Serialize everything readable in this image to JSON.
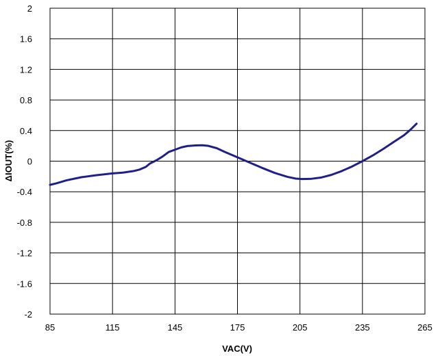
{
  "chart_data": {
    "type": "line",
    "title": "",
    "xlabel": "VAC(V)",
    "ylabel": "ΔIOUT(%)",
    "xlim": [
      85,
      265
    ],
    "ylim": [
      -2,
      2
    ],
    "x_ticks": [
      85,
      115,
      145,
      175,
      205,
      235,
      265
    ],
    "x_tick_labels": [
      "85",
      "115",
      "145",
      "175",
      "205",
      "235",
      "265"
    ],
    "y_ticks": [
      2,
      1.6,
      1.2,
      0.8,
      0.4,
      0,
      -0.4,
      -0.8,
      -1.2,
      -1.6,
      -2
    ],
    "y_tick_labels": [
      "2",
      "1.6",
      "1.2",
      "0.8",
      "0.4",
      "0",
      "-0.4",
      "-0.8",
      "-1.2",
      "-1.6",
      "-2"
    ],
    "grid": true,
    "legend": "none",
    "series": [
      {
        "color": "#1f1f8a",
        "points": [
          [
            85,
            -0.31
          ],
          [
            88,
            -0.29
          ],
          [
            93,
            -0.25
          ],
          [
            100,
            -0.21
          ],
          [
            107,
            -0.185
          ],
          [
            115,
            -0.16
          ],
          [
            120,
            -0.15
          ],
          [
            125,
            -0.13
          ],
          [
            128,
            -0.11
          ],
          [
            131,
            -0.075
          ],
          [
            133,
            -0.03
          ],
          [
            136,
            0.01
          ],
          [
            139,
            0.06
          ],
          [
            142,
            0.12
          ],
          [
            145,
            0.15
          ],
          [
            148,
            0.18
          ],
          [
            151,
            0.198
          ],
          [
            155,
            0.206
          ],
          [
            158,
            0.208
          ],
          [
            161,
            0.2
          ],
          [
            165,
            0.17
          ],
          [
            169,
            0.12
          ],
          [
            175,
            0.05
          ],
          [
            181,
            -0.02
          ],
          [
            187,
            -0.09
          ],
          [
            193,
            -0.155
          ],
          [
            199,
            -0.205
          ],
          [
            203,
            -0.228
          ],
          [
            206,
            -0.234
          ],
          [
            210,
            -0.232
          ],
          [
            215,
            -0.215
          ],
          [
            220,
            -0.18
          ],
          [
            225,
            -0.13
          ],
          [
            230,
            -0.07
          ],
          [
            235,
            0.0
          ],
          [
            240,
            0.075
          ],
          [
            245,
            0.16
          ],
          [
            250,
            0.25
          ],
          [
            255,
            0.34
          ],
          [
            258,
            0.41
          ],
          [
            261,
            0.49
          ]
        ]
      }
    ]
  }
}
